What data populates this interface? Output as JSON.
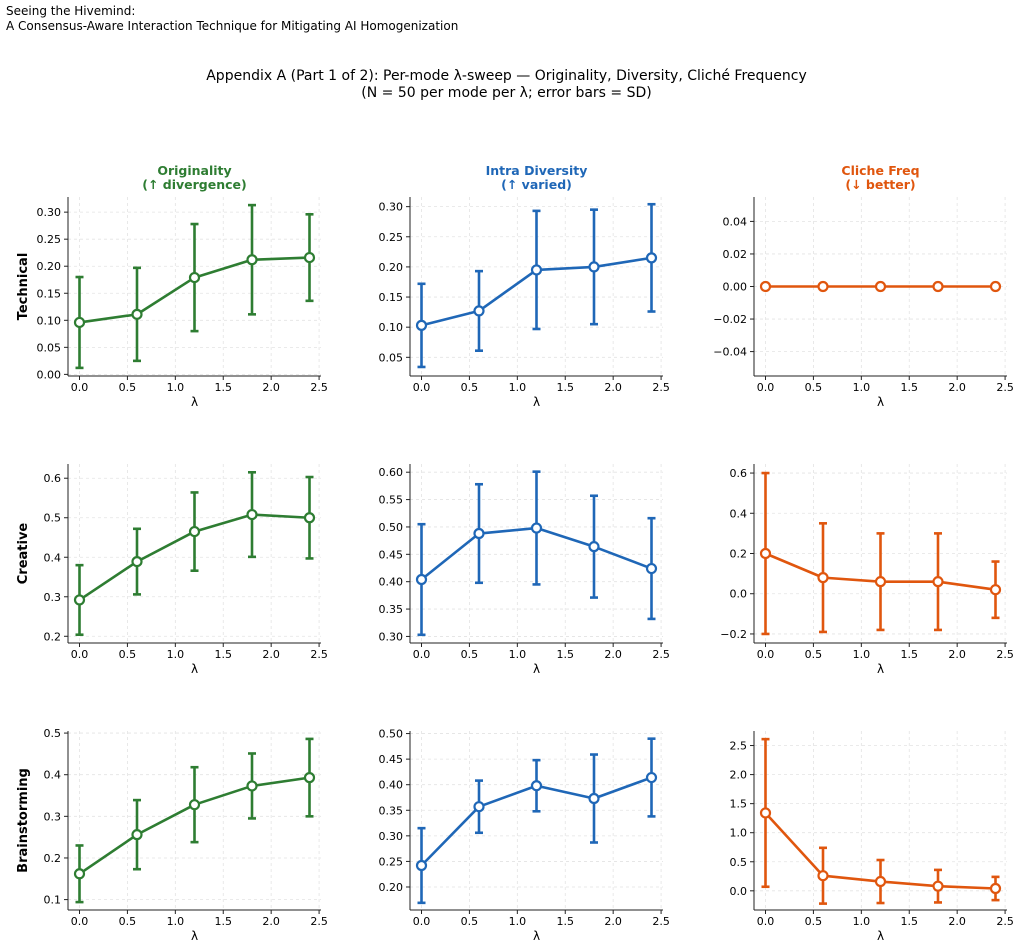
{
  "header": {
    "line1": "Seeing the Hivemind:",
    "line2": "A Consensus-Aware Interaction Technique for Mitigating AI Homogenization"
  },
  "suptitle": {
    "line1": "Appendix A (Part 1 of 2): Per-mode λ-sweep — Originality, Diversity, Cliché Frequency",
    "line2": "(N = 50 per mode per λ; error bars = SD)"
  },
  "colors": {
    "originality": "#2e7d32",
    "diversity": "#1f67b7",
    "cliche": "#e0560e"
  },
  "chart_data": [
    {
      "type": "line",
      "row": "Technical",
      "metric": "originality",
      "title": [
        "Originality",
        "(↑ divergence)"
      ],
      "xlabel": "λ",
      "ylabel": "Technical",
      "x": [
        0,
        0.6,
        1.2,
        1.8,
        2.4
      ],
      "y": [
        0.096,
        0.111,
        0.179,
        0.212,
        0.216
      ],
      "err": [
        0.084,
        0.086,
        0.099,
        0.101,
        0.08
      ],
      "ylim": [
        -0.003,
        0.328
      ],
      "yticks": [
        0.0,
        0.05,
        0.1,
        0.15,
        0.2,
        0.25,
        0.3
      ],
      "ytick_labels": [
        "0.00",
        "0.05",
        "0.10",
        "0.15",
        "0.20",
        "0.25",
        "0.30"
      ],
      "grid": true
    },
    {
      "type": "line",
      "row": "Technical",
      "metric": "diversity",
      "title": [
        "Intra Diversity",
        "(↑ varied)"
      ],
      "xlabel": "λ",
      "ylabel": "",
      "x": [
        0,
        0.6,
        1.2,
        1.8,
        2.4
      ],
      "y": [
        0.103,
        0.127,
        0.195,
        0.2,
        0.215
      ],
      "err": [
        0.069,
        0.066,
        0.098,
        0.095,
        0.089
      ],
      "ylim": [
        0.019,
        0.316
      ],
      "yticks": [
        0.05,
        0.1,
        0.15,
        0.2,
        0.25,
        0.3
      ],
      "ytick_labels": [
        "0.05",
        "0.10",
        "0.15",
        "0.20",
        "0.25",
        "0.30"
      ],
      "grid": true
    },
    {
      "type": "line",
      "row": "Technical",
      "metric": "cliche",
      "title": [
        "Cliche Freq",
        "(↓ better)"
      ],
      "xlabel": "λ",
      "ylabel": "",
      "x": [
        0,
        0.6,
        1.2,
        1.8,
        2.4
      ],
      "y": [
        0,
        0,
        0,
        0,
        0
      ],
      "err": [
        0,
        0,
        0,
        0,
        0
      ],
      "ylim": [
        -0.055,
        0.055
      ],
      "yticks": [
        -0.04,
        -0.02,
        0.0,
        0.02,
        0.04
      ],
      "ytick_labels": [
        "−0.04",
        "−0.02",
        "0.00",
        "0.02",
        "0.04"
      ],
      "grid": true
    },
    {
      "type": "line",
      "row": "Creative",
      "metric": "originality",
      "title": [],
      "xlabel": "λ",
      "ylabel": "Creative",
      "x": [
        0,
        0.6,
        1.2,
        1.8,
        2.4
      ],
      "y": [
        0.292,
        0.389,
        0.465,
        0.508,
        0.5
      ],
      "err": [
        0.088,
        0.083,
        0.099,
        0.107,
        0.103
      ],
      "ylim": [
        0.183,
        0.636
      ],
      "yticks": [
        0.2,
        0.3,
        0.4,
        0.5,
        0.6
      ],
      "ytick_labels": [
        "0.2",
        "0.3",
        "0.4",
        "0.5",
        "0.6"
      ],
      "grid": true
    },
    {
      "type": "line",
      "row": "Creative",
      "metric": "diversity",
      "title": [],
      "xlabel": "λ",
      "ylabel": "",
      "x": [
        0,
        0.6,
        1.2,
        1.8,
        2.4
      ],
      "y": [
        0.404,
        0.488,
        0.498,
        0.464,
        0.424
      ],
      "err": [
        0.101,
        0.09,
        0.103,
        0.093,
        0.092
      ],
      "ylim": [
        0.288,
        0.615
      ],
      "yticks": [
        0.3,
        0.35,
        0.4,
        0.45,
        0.5,
        0.55,
        0.6
      ],
      "ytick_labels": [
        "0.30",
        "0.35",
        "0.40",
        "0.45",
        "0.50",
        "0.55",
        "0.60"
      ],
      "grid": true
    },
    {
      "type": "line",
      "row": "Creative",
      "metric": "cliche",
      "title": [],
      "xlabel": "λ",
      "ylabel": "",
      "x": [
        0,
        0.6,
        1.2,
        1.8,
        2.4
      ],
      "y": [
        0.2,
        0.08,
        0.06,
        0.06,
        0.02
      ],
      "err": [
        0.4,
        0.27,
        0.24,
        0.24,
        0.14
      ],
      "ylim": [
        -0.245,
        0.645
      ],
      "yticks": [
        -0.2,
        0.0,
        0.2,
        0.4,
        0.6
      ],
      "ytick_labels": [
        "−0.2",
        "0.0",
        "0.2",
        "0.4",
        "0.6"
      ],
      "grid": true
    },
    {
      "type": "line",
      "row": "Brainstorming",
      "metric": "originality",
      "title": [],
      "xlabel": "λ",
      "ylabel": "Brainstorming",
      "x": [
        0,
        0.6,
        1.2,
        1.8,
        2.4
      ],
      "y": [
        0.162,
        0.256,
        0.328,
        0.373,
        0.393
      ],
      "err": [
        0.068,
        0.083,
        0.09,
        0.078,
        0.093
      ],
      "ylim": [
        0.075,
        0.505
      ],
      "yticks": [
        0.1,
        0.2,
        0.3,
        0.4,
        0.5
      ],
      "ytick_labels": [
        "0.1",
        "0.2",
        "0.3",
        "0.4",
        "0.5"
      ],
      "grid": true
    },
    {
      "type": "line",
      "row": "Brainstorming",
      "metric": "diversity",
      "title": [],
      "xlabel": "λ",
      "ylabel": "",
      "x": [
        0,
        0.6,
        1.2,
        1.8,
        2.4
      ],
      "y": [
        0.242,
        0.357,
        0.398,
        0.373,
        0.414
      ],
      "err": [
        0.073,
        0.051,
        0.05,
        0.086,
        0.076
      ],
      "ylim": [
        0.155,
        0.505
      ],
      "yticks": [
        0.2,
        0.25,
        0.3,
        0.35,
        0.4,
        0.45,
        0.5
      ],
      "ytick_labels": [
        "0.20",
        "0.25",
        "0.30",
        "0.35",
        "0.40",
        "0.45",
        "0.50"
      ],
      "grid": true
    },
    {
      "type": "line",
      "row": "Brainstorming",
      "metric": "cliche",
      "title": [],
      "xlabel": "λ",
      "ylabel": "",
      "x": [
        0,
        0.6,
        1.2,
        1.8,
        2.4
      ],
      "y": [
        1.34,
        0.26,
        0.16,
        0.08,
        0.04
      ],
      "err": [
        1.27,
        0.48,
        0.37,
        0.28,
        0.2
      ],
      "ylim": [
        -0.33,
        2.75
      ],
      "yticks": [
        0.0,
        0.5,
        1.0,
        1.5,
        2.0,
        2.5
      ],
      "ytick_labels": [
        "0.0",
        "0.5",
        "1.0",
        "1.5",
        "2.0",
        "2.5"
      ],
      "grid": true
    }
  ],
  "x_ticks": [
    0.0,
    0.5,
    1.0,
    1.5,
    2.0,
    2.5
  ],
  "x_tick_labels": [
    "0.0",
    "0.5",
    "1.0",
    "1.5",
    "2.0",
    "2.5"
  ],
  "xlim": [
    -0.12,
    2.52
  ]
}
